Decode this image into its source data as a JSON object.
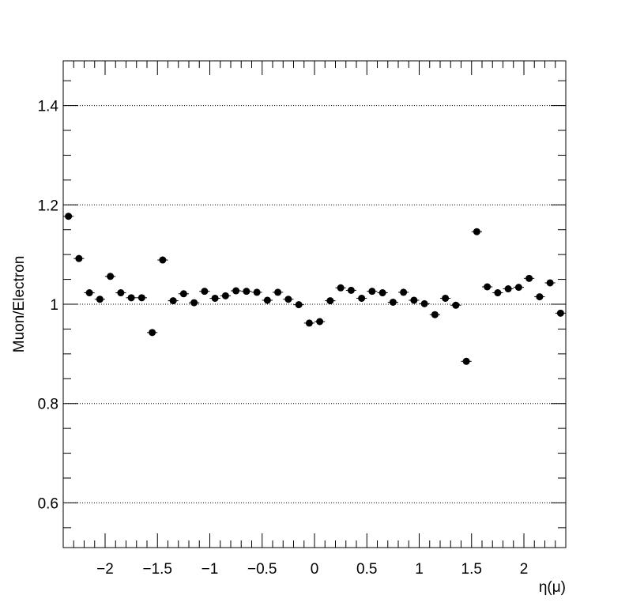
{
  "chart_data": {
    "type": "scatter",
    "xlabel": "η(μ)",
    "ylabel": "Muon/Electron",
    "xlim": [
      -2.4,
      2.4
    ],
    "ylim": [
      0.51,
      1.49
    ],
    "x_ticks": [
      -2,
      -1.5,
      -1,
      -0.5,
      0,
      0.5,
      1,
      1.5,
      2
    ],
    "x_tick_labels": [
      "−2",
      "−1.5",
      "−1",
      "−0.5",
      "0",
      "0.5",
      "1",
      "1.5",
      "2"
    ],
    "y_ticks": [
      0.6,
      0.8,
      1.0,
      1.2,
      1.4
    ],
    "y_tick_labels": [
      "0.6",
      "0.8",
      "1",
      "1.2",
      "1.4"
    ],
    "gridlines_y": [
      0.6,
      0.8,
      1.0,
      1.2,
      1.4
    ],
    "grid": "horizontal dotted",
    "marker_color": "#000000",
    "bin_width": 0.1,
    "series": [
      {
        "x": [
          -2.35,
          -2.25,
          -2.15,
          -2.05,
          -1.95,
          -1.85,
          -1.75,
          -1.65,
          -1.55,
          -1.45,
          -1.35,
          -1.25,
          -1.15,
          -1.05,
          -0.95,
          -0.85,
          -0.75,
          -0.65,
          -0.55,
          -0.45,
          -0.35,
          -0.25,
          -0.15,
          -0.05,
          0.05,
          0.15,
          0.25,
          0.35,
          0.45,
          0.55,
          0.65,
          0.75,
          0.85,
          0.95,
          1.05,
          1.15,
          1.25,
          1.35,
          1.45,
          1.55,
          1.65,
          1.75,
          1.85,
          1.95,
          2.05,
          2.15,
          2.25,
          2.35
        ],
        "y": [
          1.177,
          1.092,
          1.023,
          1.01,
          1.056,
          1.023,
          1.013,
          1.013,
          0.943,
          1.089,
          1.007,
          1.021,
          1.003,
          1.026,
          1.012,
          1.017,
          1.027,
          1.026,
          1.024,
          1.008,
          1.024,
          1.01,
          0.999,
          0.962,
          0.965,
          1.007,
          1.033,
          1.028,
          1.012,
          1.026,
          1.023,
          1.004,
          1.024,
          1.008,
          1.001,
          0.979,
          1.012,
          0.998,
          0.885,
          1.146,
          1.035,
          1.023,
          1.031,
          1.034,
          1.052,
          1.015,
          1.043,
          0.982
        ]
      }
    ]
  }
}
